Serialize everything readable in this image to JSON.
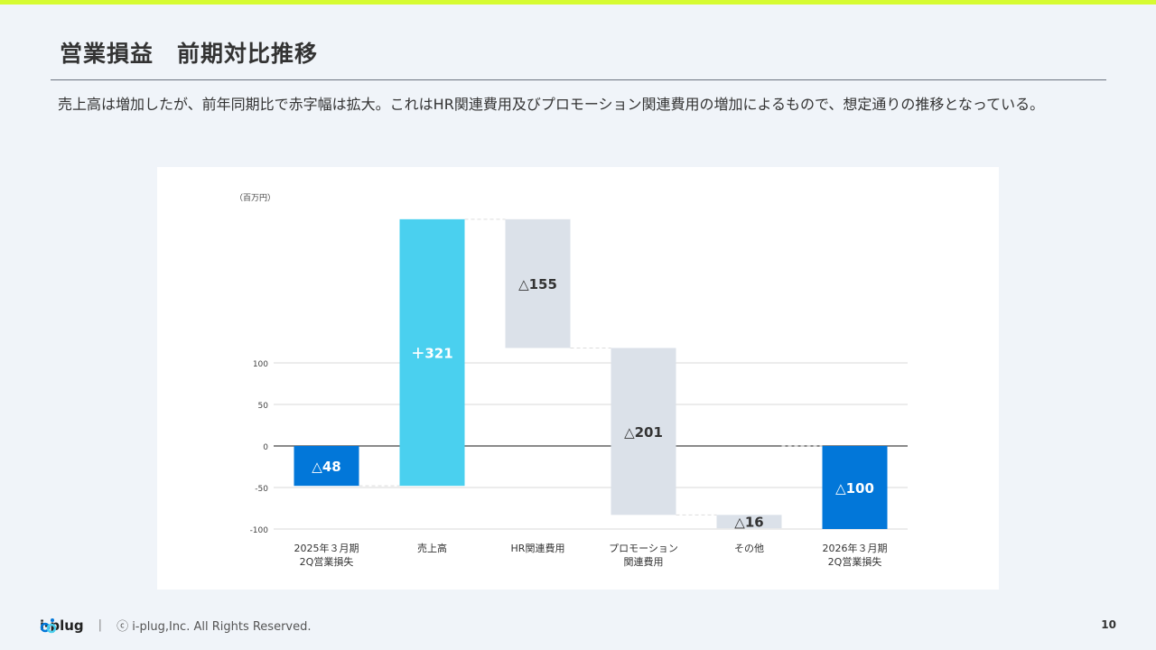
{
  "header": {
    "title": "営業損益　前期対比推移",
    "description": "売上高は増加したが、前年同期比で赤字幅は拡大。これはHR関連費用及びプロモーション関連費用の増加によるもので、想定通りの推移となっている。"
  },
  "footer": {
    "logo": "i-plug",
    "separator": "|",
    "copyright": "ⓒ i-plug,Inc. All Rights Reserved.",
    "page": "10"
  },
  "colors": {
    "accent_bar": "#d6fb32",
    "total": "#0277d9",
    "increase": "#4ad0ef",
    "decrease": "#dbe1e9"
  },
  "chart_data": {
    "type": "waterfall",
    "unit_label": "（百万円）",
    "categories": [
      [
        "2025年３月期",
        "2Q営業損失"
      ],
      [
        "売上高"
      ],
      [
        "HR関連費用"
      ],
      [
        "プロモーション",
        "関連費用"
      ],
      [
        "その他"
      ],
      [
        "2026年３月期",
        "2Q営業損失"
      ]
    ],
    "values": [
      -48,
      321,
      -155,
      -201,
      -16,
      -100
    ],
    "kinds": [
      "total",
      "increase",
      "decrease",
      "decrease",
      "decrease",
      "total"
    ],
    "labels": [
      "△48",
      "＋321",
      "△155",
      "△201",
      "△16",
      "△100"
    ],
    "yticks": [
      100,
      50,
      0,
      -50,
      -100
    ],
    "grid": true
  }
}
